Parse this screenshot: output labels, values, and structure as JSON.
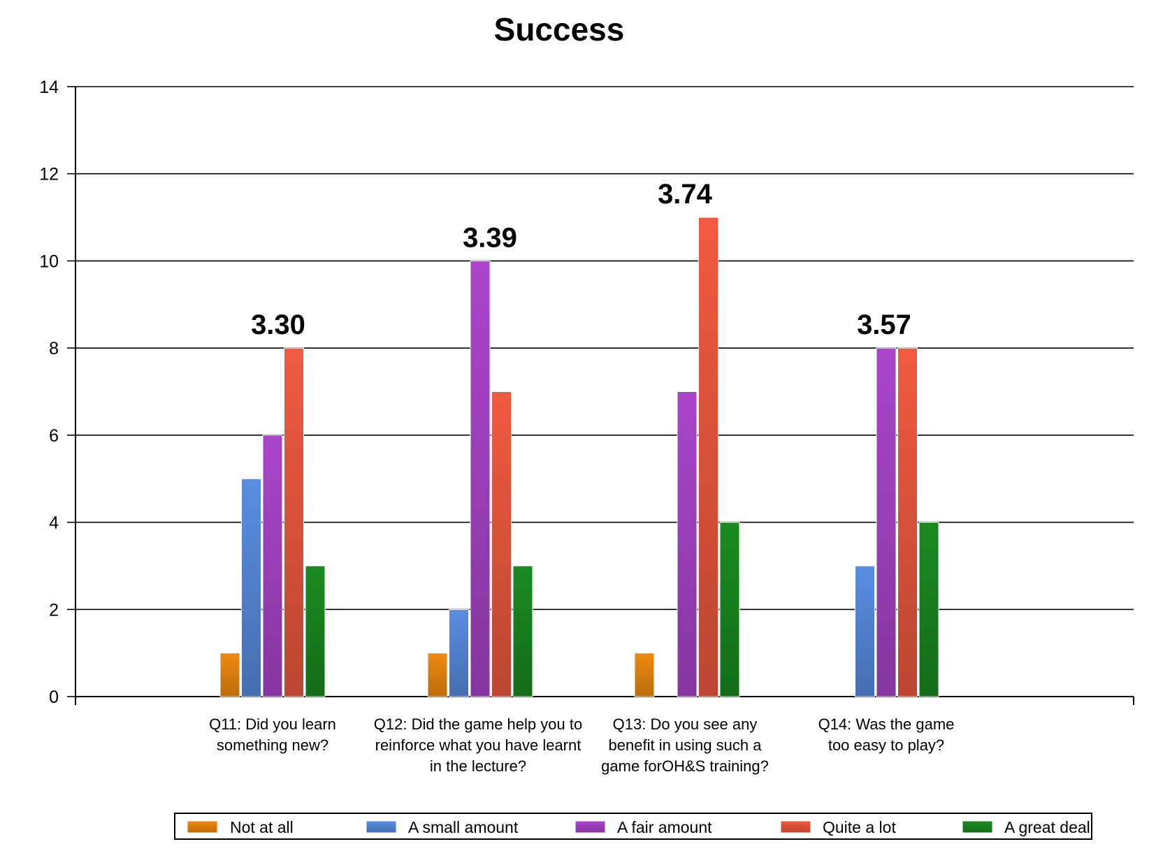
{
  "chart_data": {
    "type": "bar",
    "title": "Success",
    "xlabel": "",
    "ylabel": "",
    "ylim": [
      0,
      14
    ],
    "yticks": [
      0,
      2,
      4,
      6,
      8,
      10,
      12,
      14
    ],
    "grid": true,
    "legend_position": "bottom",
    "categories": [
      [
        "Q11: Did you learn",
        "something new?"
      ],
      [
        "Q12: Did the game help you to",
        "reinforce what you have learnt",
        "in the lecture?"
      ],
      [
        "Q13: Do you see any",
        "benefit in using such a",
        "game forOH&S training?"
      ],
      [
        "Q14: Was the game",
        "too easy to play?"
      ]
    ],
    "series": [
      {
        "name": "Not at all",
        "color": "#f08a10",
        "values": [
          1,
          1,
          1,
          0
        ]
      },
      {
        "name": "A small amount",
        "color": "#5a8de0",
        "values": [
          5,
          2,
          0,
          3
        ]
      },
      {
        "name": "A fair amount",
        "color": "#aa45cc",
        "values": [
          6,
          10,
          7,
          8
        ]
      },
      {
        "name": "Quite a lot",
        "color": "#f05a40",
        "values": [
          8,
          7,
          11,
          8
        ]
      },
      {
        "name": "A great deal",
        "color": "#1a8a20",
        "values": [
          3,
          3,
          4,
          4
        ]
      }
    ],
    "annotations": [
      "3.30",
      "3.39",
      "3.74",
      "3.57"
    ]
  }
}
